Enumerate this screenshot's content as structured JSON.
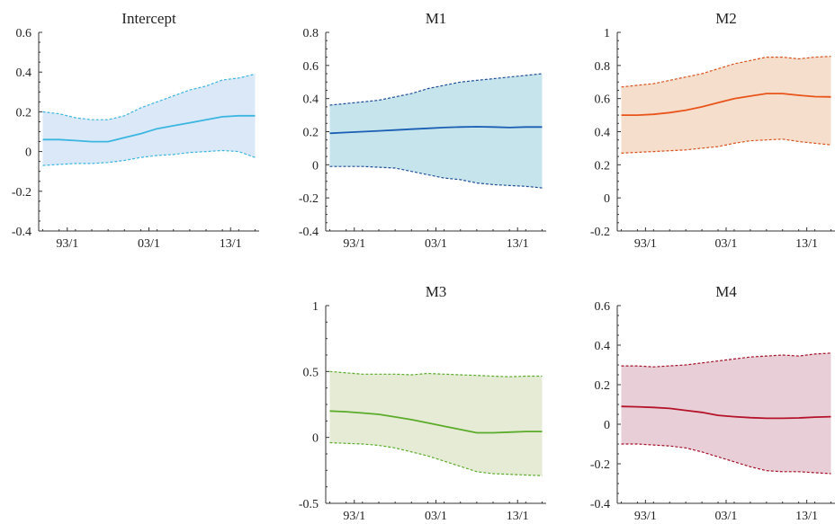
{
  "chart_data": [
    {
      "type": "area",
      "title": "Intercept",
      "x_tick_labels": [
        "93/1",
        "03/1",
        "13/1"
      ],
      "x_ticks": [
        1993,
        2003,
        2013
      ],
      "xlim": [
        1989.5,
        2016.5
      ],
      "ylim": [
        -0.4,
        0.6
      ],
      "y_ticks": [
        -0.4,
        -0.2,
        0,
        0.2,
        0.4,
        0.6
      ],
      "y_tick_labels": [
        "-0.4",
        "-0.2",
        "0",
        "0.2",
        "0.4",
        "0.6"
      ],
      "colors": {
        "line": "#3bb6e0",
        "band": "#dbe8f8",
        "bound": "#3bb6e0"
      },
      "x": [
        1990,
        1992,
        1994,
        1996,
        1998,
        2000,
        2002,
        2004,
        2006,
        2008,
        2010,
        2012,
        2014,
        2016
      ],
      "series": [
        {
          "values": [
            0.06,
            0.06,
            0.055,
            0.05,
            0.05,
            0.07,
            0.09,
            0.115,
            0.13,
            0.145,
            0.16,
            0.175,
            0.18,
            0.18
          ]
        },
        {
          "values": [
            0.2,
            0.19,
            0.17,
            0.16,
            0.16,
            0.18,
            0.22,
            0.25,
            0.28,
            0.31,
            0.33,
            0.36,
            0.37,
            0.39
          ]
        },
        {
          "values": [
            -0.07,
            -0.065,
            -0.06,
            -0.06,
            -0.055,
            -0.045,
            -0.03,
            -0.02,
            -0.015,
            -0.005,
            0,
            0.005,
            0,
            -0.03
          ]
        }
      ]
    },
    {
      "type": "area",
      "title": "M1",
      "x_tick_labels": [
        "93/1",
        "03/1",
        "13/1"
      ],
      "x_ticks": [
        1993,
        2003,
        2013
      ],
      "xlim": [
        1989.5,
        2016.5
      ],
      "ylim": [
        -0.4,
        0.8
      ],
      "y_ticks": [
        -0.4,
        -0.2,
        0,
        0.2,
        0.4,
        0.6,
        0.8
      ],
      "y_tick_labels": [
        "-0.4",
        "-0.2",
        "0",
        "0.2",
        "0.4",
        "0.6",
        "0.8"
      ],
      "colors": {
        "line": "#1a5fb4",
        "band": "#c6e4ec",
        "bound": "#1f4e99"
      },
      "x": [
        1990,
        1992,
        1994,
        1996,
        1998,
        2000,
        2002,
        2004,
        2006,
        2008,
        2010,
        2012,
        2014,
        2016
      ],
      "series": [
        {
          "values": [
            0.19,
            0.195,
            0.2,
            0.205,
            0.21,
            0.215,
            0.22,
            0.225,
            0.228,
            0.23,
            0.228,
            0.225,
            0.228,
            0.228
          ]
        },
        {
          "values": [
            0.36,
            0.37,
            0.38,
            0.39,
            0.41,
            0.43,
            0.46,
            0.48,
            0.5,
            0.51,
            0.52,
            0.53,
            0.54,
            0.55
          ]
        },
        {
          "values": [
            -0.01,
            -0.01,
            -0.01,
            -0.015,
            -0.02,
            -0.04,
            -0.06,
            -0.08,
            -0.09,
            -0.11,
            -0.12,
            -0.125,
            -0.13,
            -0.14
          ]
        }
      ]
    },
    {
      "type": "area",
      "title": "M2",
      "x_tick_labels": [
        "93/1",
        "03/1",
        "13/1"
      ],
      "x_ticks": [
        1993,
        2003,
        2013
      ],
      "xlim": [
        1989.5,
        2016.5
      ],
      "ylim": [
        -0.2,
        1
      ],
      "y_ticks": [
        -0.2,
        0,
        0.2,
        0.4,
        0.6,
        0.8,
        1
      ],
      "y_tick_labels": [
        "-0.2",
        "0",
        "0.2",
        "0.4",
        "0.6",
        "0.8",
        "1"
      ],
      "colors": {
        "line": "#e8541a",
        "band": "#f6decd",
        "bound": "#d9531e"
      },
      "x": [
        1990,
        1992,
        1994,
        1996,
        1998,
        2000,
        2002,
        2004,
        2006,
        2008,
        2010,
        2012,
        2014,
        2016
      ],
      "series": [
        {
          "values": [
            0.5,
            0.5,
            0.505,
            0.515,
            0.53,
            0.55,
            0.575,
            0.6,
            0.615,
            0.63,
            0.63,
            0.62,
            0.612,
            0.61
          ]
        },
        {
          "values": [
            0.67,
            0.68,
            0.69,
            0.71,
            0.73,
            0.75,
            0.78,
            0.81,
            0.83,
            0.85,
            0.85,
            0.84,
            0.85,
            0.855
          ]
        },
        {
          "values": [
            0.27,
            0.275,
            0.28,
            0.285,
            0.29,
            0.3,
            0.31,
            0.33,
            0.345,
            0.35,
            0.355,
            0.34,
            0.33,
            0.32
          ]
        }
      ]
    },
    {
      "type": "area",
      "title": "M3",
      "x_tick_labels": [
        "93/1",
        "03/1",
        "13/1"
      ],
      "x_ticks": [
        1993,
        2003,
        2013
      ],
      "xlim": [
        1989.5,
        2016.5
      ],
      "ylim": [
        -0.5,
        1
      ],
      "y_ticks": [
        -0.5,
        0,
        0.5,
        1
      ],
      "y_tick_labels": [
        "-0.5",
        "0",
        "0.5",
        "1"
      ],
      "colors": {
        "line": "#5aac2a",
        "band": "#e6ebd6",
        "bound": "#5aac2a"
      },
      "x": [
        1990,
        1992,
        1994,
        1996,
        1998,
        2000,
        2002,
        2004,
        2006,
        2008,
        2010,
        2012,
        2014,
        2016
      ],
      "series": [
        {
          "values": [
            0.2,
            0.195,
            0.185,
            0.175,
            0.155,
            0.135,
            0.11,
            0.085,
            0.06,
            0.035,
            0.035,
            0.04,
            0.045,
            0.045
          ]
        },
        {
          "values": [
            0.5,
            0.49,
            0.48,
            0.48,
            0.48,
            0.475,
            0.485,
            0.48,
            0.475,
            0.47,
            0.465,
            0.46,
            0.465,
            0.465
          ]
        },
        {
          "values": [
            -0.04,
            -0.045,
            -0.05,
            -0.06,
            -0.08,
            -0.11,
            -0.14,
            -0.18,
            -0.22,
            -0.26,
            -0.275,
            -0.28,
            -0.285,
            -0.29
          ]
        }
      ]
    },
    {
      "type": "area",
      "title": "M4",
      "x_tick_labels": [
        "93/1",
        "03/1",
        "13/1"
      ],
      "x_ticks": [
        1993,
        2003,
        2013
      ],
      "xlim": [
        1989.5,
        2016.5
      ],
      "ylim": [
        -0.4,
        0.6
      ],
      "y_ticks": [
        -0.4,
        -0.2,
        0,
        0.2,
        0.4,
        0.6
      ],
      "y_tick_labels": [
        "-0.4",
        "-0.2",
        "0",
        "0.2",
        "0.4",
        "0.6"
      ],
      "colors": {
        "line": "#b5132a",
        "band": "#e8cfd7",
        "bound": "#a3122a"
      },
      "x": [
        1990,
        1992,
        1994,
        1996,
        1998,
        2000,
        2002,
        2004,
        2006,
        2008,
        2010,
        2012,
        2014,
        2016
      ],
      "series": [
        {
          "values": [
            0.09,
            0.088,
            0.085,
            0.08,
            0.07,
            0.06,
            0.045,
            0.038,
            0.033,
            0.03,
            0.03,
            0.032,
            0.036,
            0.038
          ]
        },
        {
          "values": [
            0.295,
            0.295,
            0.29,
            0.295,
            0.3,
            0.31,
            0.32,
            0.33,
            0.34,
            0.345,
            0.35,
            0.345,
            0.355,
            0.36
          ]
        },
        {
          "values": [
            -0.1,
            -0.1,
            -0.105,
            -0.11,
            -0.12,
            -0.14,
            -0.165,
            -0.19,
            -0.215,
            -0.235,
            -0.24,
            -0.24,
            -0.245,
            -0.25
          ]
        }
      ]
    }
  ]
}
